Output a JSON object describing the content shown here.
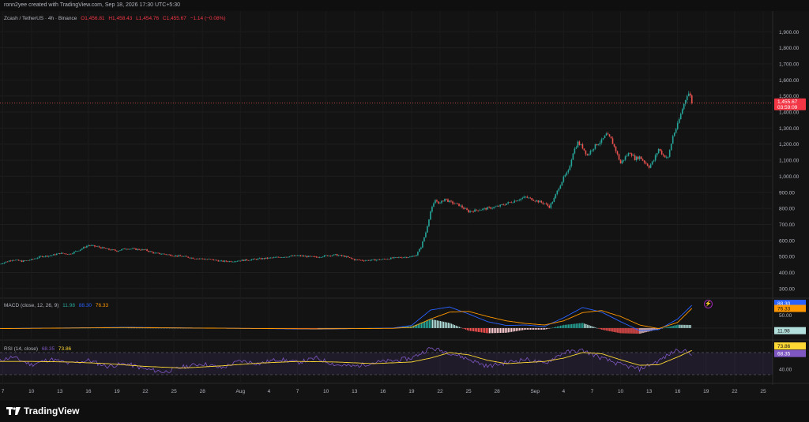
{
  "header": {
    "created_by": "ronn2yee created with TradingView.com, Sep 18, 2026 17:30 UTC+5:30"
  },
  "legend": {
    "symbol": "Zcash / TetherUS · 4h · Binance",
    "open": "O1,456.81",
    "high": "H1,458.43",
    "low": "L1,454.76",
    "close": "C1,455.67",
    "change": "−1.14 (−0.08%)"
  },
  "macd_legend": {
    "name": "MACD (close, 12, 26, 9)",
    "hist": "11.98",
    "macd": "88.30",
    "signal": "76.33"
  },
  "rsi_legend": {
    "name": "RSI (14, close)",
    "rsi": "68.35",
    "ma": "73.86"
  },
  "price_badge": {
    "price": "1,455.67",
    "countdown": "03:59:09"
  },
  "macd_badges": {
    "macd": "88.30",
    "signal": "76.33",
    "hist": "11.98"
  },
  "rsi_badges": {
    "ma": "73.86",
    "rsi": "68.35"
  },
  "footer": {
    "brand": "TradingView"
  },
  "colors": {
    "up": "#26a69a",
    "down": "#ef5350",
    "macd": "#2962ff",
    "signal": "#ff9800",
    "rsi": "#7e57c2",
    "rsi_ma": "#fdd835",
    "bg": "#131313"
  },
  "chart_data": [
    {
      "type": "candlestick",
      "title": "Zcash / TetherUS · 4h · Binance",
      "ylim": [
        250,
        2000
      ],
      "yticks": [
        300,
        400,
        500,
        600,
        700,
        800,
        900,
        1000,
        1100,
        1200,
        1300,
        1400,
        1500,
        1600,
        1700,
        1800,
        1900
      ],
      "ytick_labels": [
        "300.00",
        "400.00",
        "500.00",
        "600.00",
        "700.00",
        "800.00",
        "900.00",
        "1,000.00",
        "1,100.00",
        "1,200.00",
        "1,300.00",
        "1,400.00",
        "1,500.00",
        "1,600.00",
        "1,700.00",
        "1,800.00",
        "1,900.00"
      ],
      "xticks": [
        "7",
        "10",
        "13",
        "16",
        "19",
        "22",
        "25",
        "28",
        "Aug",
        "4",
        "7",
        "10",
        "13",
        "16",
        "19",
        "22",
        "25",
        "28",
        "Sep",
        "4",
        "7",
        "10",
        "13",
        "16",
        "19",
        "22",
        "25"
      ],
      "xtick_days": [
        7,
        10,
        13,
        16,
        19,
        22,
        25,
        28,
        32,
        35,
        38,
        41,
        44,
        47,
        50,
        53,
        56,
        59,
        63,
        66,
        69,
        72,
        75,
        78,
        81,
        84,
        87
      ],
      "x_unit": "days since Jul 0",
      "last_close": 1455.67,
      "price_path": [
        [
          6.5,
          450
        ],
        [
          7,
          460
        ],
        [
          8,
          480
        ],
        [
          9,
          470
        ],
        [
          10,
          480
        ],
        [
          11,
          500
        ],
        [
          12,
          505
        ],
        [
          13,
          520
        ],
        [
          14,
          515
        ],
        [
          15,
          540
        ],
        [
          16,
          570
        ],
        [
          17,
          560
        ],
        [
          18,
          545
        ],
        [
          19,
          535
        ],
        [
          20,
          550
        ],
        [
          21,
          545
        ],
        [
          22,
          540
        ],
        [
          23,
          520
        ],
        [
          24,
          515
        ],
        [
          25,
          505
        ],
        [
          26,
          500
        ],
        [
          27,
          490
        ],
        [
          28,
          485
        ],
        [
          29,
          480
        ],
        [
          30,
          470
        ],
        [
          31,
          470
        ],
        [
          32,
          475
        ],
        [
          33,
          480
        ],
        [
          34,
          485
        ],
        [
          35,
          490
        ],
        [
          36,
          495
        ],
        [
          37,
          500
        ],
        [
          38,
          505
        ],
        [
          39,
          500
        ],
        [
          40,
          495
        ],
        [
          41,
          505
        ],
        [
          42,
          510
        ],
        [
          43,
          500
        ],
        [
          44,
          480
        ],
        [
          45,
          475
        ],
        [
          46,
          478
        ],
        [
          47,
          482
        ],
        [
          48,
          490
        ],
        [
          49,
          495
        ],
        [
          50,
          498
        ],
        [
          50.5,
          510
        ],
        [
          51,
          560
        ],
        [
          51.5,
          650
        ],
        [
          52,
          780
        ],
        [
          52.5,
          850
        ],
        [
          53,
          830
        ],
        [
          53.5,
          860
        ],
        [
          54,
          840
        ],
        [
          55,
          820
        ],
        [
          56,
          780
        ],
        [
          57,
          790
        ],
        [
          58,
          800
        ],
        [
          59,
          810
        ],
        [
          60,
          830
        ],
        [
          61,
          850
        ],
        [
          62,
          870
        ],
        [
          63,
          850
        ],
        [
          64,
          830
        ],
        [
          64.5,
          810
        ],
        [
          65,
          860
        ],
        [
          65.5,
          930
        ],
        [
          66,
          990
        ],
        [
          66.5,
          1030
        ],
        [
          67,
          1150
        ],
        [
          67.5,
          1210
        ],
        [
          68,
          1180
        ],
        [
          68.5,
          1130
        ],
        [
          69,
          1170
        ],
        [
          69.5,
          1200
        ],
        [
          70,
          1220
        ],
        [
          70.5,
          1260
        ],
        [
          71,
          1230
        ],
        [
          71.5,
          1160
        ],
        [
          72,
          1080
        ],
        [
          72.5,
          1120
        ],
        [
          73,
          1150
        ],
        [
          73.5,
          1110
        ],
        [
          74,
          1120
        ],
        [
          74.5,
          1090
        ],
        [
          75,
          1060
        ],
        [
          75.5,
          1100
        ],
        [
          76,
          1170
        ],
        [
          76.5,
          1130
        ],
        [
          77,
          1115
        ],
        [
          77.5,
          1250
        ],
        [
          78,
          1320
        ],
        [
          78.5,
          1420
        ],
        [
          79,
          1510
        ],
        [
          79.25,
          1520
        ],
        [
          79.5,
          1456
        ]
      ]
    },
    {
      "type": "line",
      "title": "MACD (close, 12, 26, 9)",
      "ylim": [
        -40,
        110
      ],
      "yticks": [
        50
      ],
      "ytick_labels": [
        "50.00"
      ],
      "series": [
        {
          "name": "MACD",
          "values": [
            [
              6.5,
              -2
            ],
            [
              20,
              3
            ],
            [
              40,
              -4
            ],
            [
              48,
              0
            ],
            [
              50,
              10
            ],
            [
              52,
              70
            ],
            [
              54,
              82
            ],
            [
              56,
              55
            ],
            [
              58,
              25
            ],
            [
              60,
              10
            ],
            [
              62,
              12
            ],
            [
              64,
              6
            ],
            [
              66,
              40
            ],
            [
              68,
              80
            ],
            [
              70,
              62
            ],
            [
              72,
              25
            ],
            [
              74,
              -10
            ],
            [
              76,
              -6
            ],
            [
              78,
              35
            ],
            [
              79.5,
              88.3
            ]
          ]
        },
        {
          "name": "Signal",
          "values": [
            [
              6.5,
              -2
            ],
            [
              20,
              2
            ],
            [
              40,
              -3
            ],
            [
              48,
              -1
            ],
            [
              50,
              3
            ],
            [
              52,
              35
            ],
            [
              54,
              62
            ],
            [
              56,
              65
            ],
            [
              58,
              45
            ],
            [
              60,
              28
            ],
            [
              62,
              18
            ],
            [
              64,
              12
            ],
            [
              66,
              28
            ],
            [
              68,
              60
            ],
            [
              70,
              68
            ],
            [
              72,
              45
            ],
            [
              74,
              12
            ],
            [
              76,
              -2
            ],
            [
              78,
              22
            ],
            [
              79.5,
              76.33
            ]
          ]
        },
        {
          "name": "Histogram",
          "values": [
            [
              52,
              35
            ],
            [
              54,
              20
            ],
            [
              56,
              -10
            ],
            [
              58,
              -20
            ],
            [
              60,
              -18
            ],
            [
              62,
              -6
            ],
            [
              66,
              12
            ],
            [
              68,
              20
            ],
            [
              70,
              -6
            ],
            [
              72,
              -20
            ],
            [
              74,
              -22
            ],
            [
              76,
              -4
            ],
            [
              78,
              13
            ],
            [
              79.5,
              11.98
            ]
          ]
        }
      ]
    },
    {
      "type": "line",
      "title": "RSI (14, close)",
      "ylim": [
        20,
        90
      ],
      "yticks": [
        40
      ],
      "ytick_labels": [
        "40.00"
      ],
      "bands": [
        30,
        70
      ],
      "series": [
        {
          "name": "RSI",
          "values": [
            [
              6.5,
              55
            ],
            [
              8,
              62
            ],
            [
              10,
              48
            ],
            [
              12,
              58
            ],
            [
              14,
              50
            ],
            [
              16,
              56
            ],
            [
              18,
              45
            ],
            [
              20,
              50
            ],
            [
              22,
              40
            ],
            [
              24,
              35
            ],
            [
              26,
              44
            ],
            [
              28,
              50
            ],
            [
              30,
              42
            ],
            [
              32,
              55
            ],
            [
              34,
              50
            ],
            [
              36,
              58
            ],
            [
              38,
              52
            ],
            [
              40,
              60
            ],
            [
              42,
              48
            ],
            [
              44,
              45
            ],
            [
              46,
              52
            ],
            [
              48,
              55
            ],
            [
              50,
              60
            ],
            [
              52,
              78
            ],
            [
              54,
              70
            ],
            [
              56,
              58
            ],
            [
              58,
              45
            ],
            [
              60,
              52
            ],
            [
              62,
              58
            ],
            [
              64,
              50
            ],
            [
              66,
              70
            ],
            [
              68,
              74
            ],
            [
              70,
              60
            ],
            [
              72,
              48
            ],
            [
              74,
              40
            ],
            [
              76,
              55
            ],
            [
              78,
              76
            ],
            [
              79.5,
              68.35
            ]
          ]
        },
        {
          "name": "RSI-based MA",
          "values": [
            [
              6.5,
              54
            ],
            [
              10,
              54
            ],
            [
              14,
              53
            ],
            [
              18,
              50
            ],
            [
              22,
              45
            ],
            [
              26,
              42
            ],
            [
              30,
              46
            ],
            [
              34,
              51
            ],
            [
              38,
              54
            ],
            [
              42,
              53
            ],
            [
              46,
              50
            ],
            [
              50,
              53
            ],
            [
              52,
              60
            ],
            [
              54,
              70
            ],
            [
              56,
              66
            ],
            [
              58,
              56
            ],
            [
              60,
              50
            ],
            [
              62,
              52
            ],
            [
              64,
              54
            ],
            [
              66,
              60
            ],
            [
              68,
              70
            ],
            [
              70,
              68
            ],
            [
              72,
              57
            ],
            [
              74,
              47
            ],
            [
              76,
              48
            ],
            [
              78,
              62
            ],
            [
              79.5,
              73.86
            ]
          ]
        }
      ]
    }
  ]
}
